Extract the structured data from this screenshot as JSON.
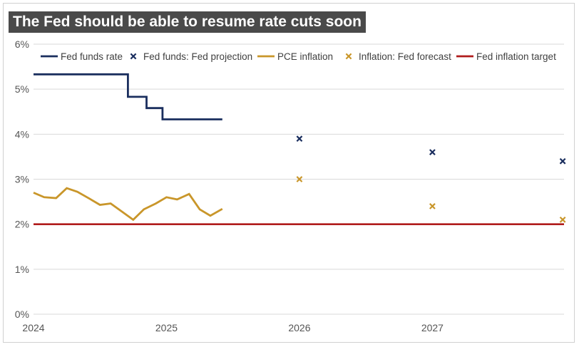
{
  "chart_data": {
    "type": "line",
    "title": "The Fed should be able to resume rate cuts soon",
    "xlabel": "",
    "ylabel": "",
    "xlim": [
      2024.0,
      2027.99
    ],
    "ylim": [
      0,
      6
    ],
    "y_ticks": [
      0,
      1,
      2,
      3,
      4,
      5,
      6
    ],
    "y_tick_labels": [
      "0%",
      "1%",
      "2%",
      "3%",
      "4%",
      "5%",
      "6%"
    ],
    "x_ticks": [
      2024,
      2025,
      2026,
      2027
    ],
    "x_tick_labels": [
      "2024",
      "2025",
      "2026",
      "2027"
    ],
    "grid": true,
    "legend_position": "top",
    "colors": {
      "fed_funds": "#1a2e5e",
      "fed_projection": "#1a2e5e",
      "pce": "#c9962a",
      "inflation_forecast": "#c9962a",
      "target": "#b01c1c",
      "title_bg": "#4a4a4a",
      "grid": "#d9d9d9"
    },
    "series": [
      {
        "name": "Fed funds rate",
        "style": "step",
        "x": [
          2024.0,
          2024.71,
          2024.71,
          2024.85,
          2024.85,
          2024.97,
          2024.97,
          2025.42
        ],
        "values": [
          5.33,
          5.33,
          4.83,
          4.83,
          4.58,
          4.58,
          4.33,
          4.33
        ]
      },
      {
        "name": "Fed funds: Fed projection",
        "style": "x-marker",
        "x": [
          2026.0,
          2027.0,
          2027.98
        ],
        "values": [
          3.9,
          3.6,
          3.4
        ]
      },
      {
        "name": "PCE inflation",
        "style": "line",
        "x": [
          2024.0,
          2024.08,
          2024.17,
          2024.25,
          2024.33,
          2024.42,
          2024.5,
          2024.58,
          2024.67,
          2024.75,
          2024.83,
          2024.92,
          2025.0,
          2025.08,
          2025.17,
          2025.25,
          2025.33,
          2025.42
        ],
        "values": [
          2.7,
          2.6,
          2.58,
          2.8,
          2.72,
          2.57,
          2.43,
          2.46,
          2.27,
          2.1,
          2.33,
          2.46,
          2.6,
          2.55,
          2.67,
          2.33,
          2.19,
          2.34
        ]
      },
      {
        "name": "Inflation: Fed forecast",
        "style": "x-marker",
        "x": [
          2026.0,
          2027.0,
          2027.98
        ],
        "values": [
          3.0,
          2.4,
          2.1
        ]
      },
      {
        "name": "Fed inflation target",
        "style": "line",
        "x": [
          2024.0,
          2027.99
        ],
        "values": [
          2.0,
          2.0
        ]
      }
    ]
  }
}
